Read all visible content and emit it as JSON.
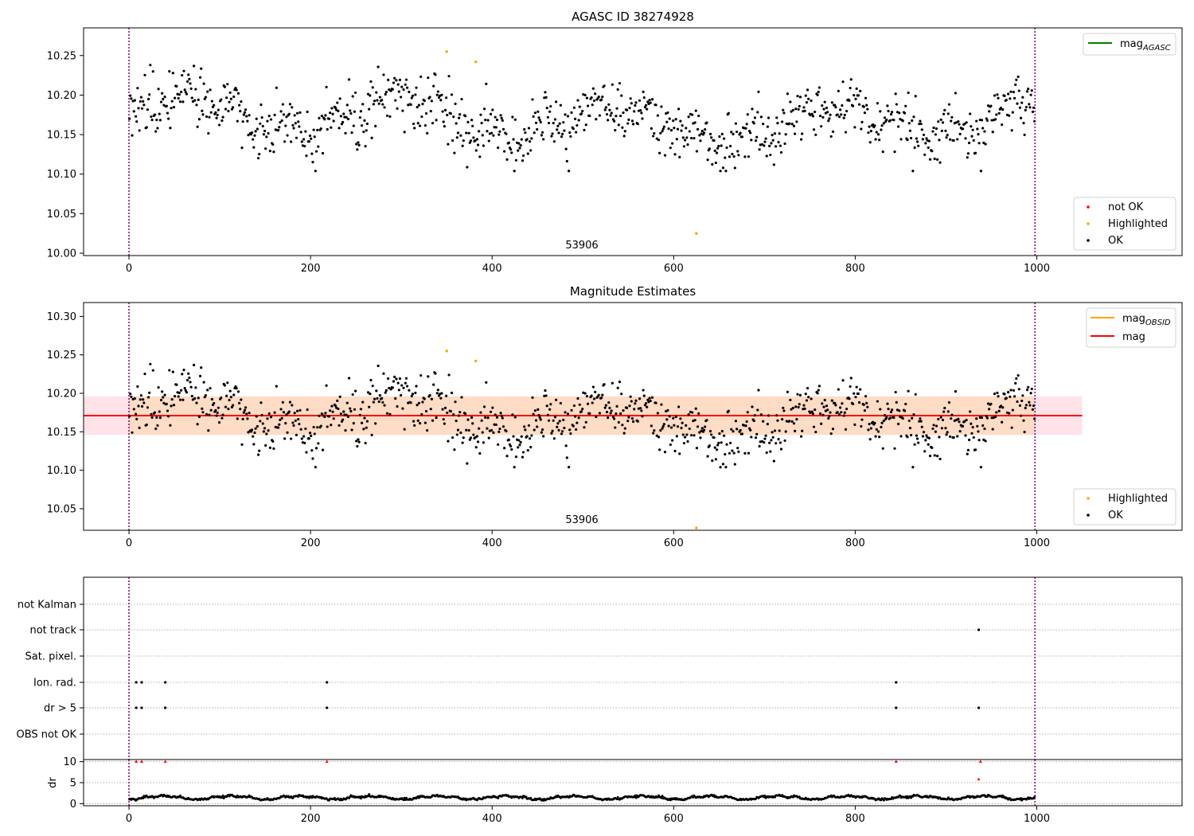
{
  "figure": {
    "panel1_title": "AGASC ID 38274928",
    "panel2_title": "Magnitude Estimates",
    "obsid_label": "53906"
  },
  "colors": {
    "ok": "#000000",
    "highlighted": "#ffa500",
    "not_ok": "#ff0000",
    "vline": "#800080",
    "mag_line": "#ff0000",
    "mag_band": "#ffc0cb",
    "obsid_line": "#ffa500",
    "obsid_band": "#ffdab9",
    "agasc_line": "#008000"
  },
  "legends": {
    "p1_line": {
      "base": "mag",
      "sub": "AGASC"
    },
    "p1_points": [
      "not OK",
      "Highlighted",
      "OK"
    ],
    "p2_lines": [
      {
        "base": "mag",
        "sub": "OBSID"
      },
      {
        "base": "mag",
        "sub": ""
      }
    ],
    "p2_points": [
      "Highlighted",
      "OK"
    ]
  },
  "chart_data": [
    {
      "type": "scatter",
      "title": "AGASC ID 38274928",
      "xlim": [
        -50,
        1160
      ],
      "ylim": [
        9.997,
        10.285
      ],
      "xticks": [
        "0",
        "200",
        "400",
        "600",
        "800",
        "1000"
      ],
      "yticks": [
        "10.00",
        "10.05",
        "10.10",
        "10.15",
        "10.20",
        "10.25"
      ],
      "vlines_x": [
        0,
        998
      ],
      "obsid_text_x": 500,
      "series": [
        {
          "name": "OK",
          "shape": "mean 10.17 ± 0.025, 998 points spanning x 0–998"
        },
        {
          "name": "Highlighted",
          "points": [
            [
              350,
              10.255
            ],
            [
              382,
              10.242
            ],
            [
              625,
              10.025
            ]
          ]
        },
        {
          "name": "not OK",
          "points": []
        }
      ],
      "legend_loc": "upper-right (line), lower-right (points)"
    },
    {
      "type": "scatter",
      "title": "Magnitude Estimates",
      "xlim": [
        -50,
        1160
      ],
      "ylim": [
        10.022,
        10.318
      ],
      "xticks": [
        "0",
        "200",
        "400",
        "600",
        "800",
        "1000"
      ],
      "yticks": [
        "10.05",
        "10.10",
        "10.15",
        "10.20",
        "10.25",
        "10.30"
      ],
      "mag": 10.171,
      "mag_band": [
        10.146,
        10.196
      ],
      "band_x": [
        -50,
        1050
      ],
      "series": [
        {
          "name": "OK",
          "shape": "same observations as above"
        },
        {
          "name": "Highlighted",
          "points": [
            [
              350,
              10.255
            ],
            [
              382,
              10.242
            ],
            [
              625,
              10.025
            ]
          ]
        }
      ],
      "legend_loc": "upper-right (lines), lower-right (points)"
    },
    {
      "type": "scatter",
      "title": "",
      "xlim": [
        -50,
        1160
      ],
      "categories": [
        "not Kalman",
        "not track",
        "Sat. pixel.",
        "Ion. rad.",
        "dr > 5",
        "OBS not OK"
      ],
      "flags": {
        "not track": [
          936
        ],
        "Ion. rad.": [
          8,
          14,
          40,
          218,
          845
        ],
        "dr > 5": [
          8,
          14,
          40,
          218,
          845,
          936
        ]
      }
    },
    {
      "type": "scatter",
      "title": "",
      "ylabel": "dr",
      "xlim": [
        -50,
        1160
      ],
      "ylim": [
        -0.5,
        10.5
      ],
      "yticks": [
        "0",
        "5",
        "10"
      ],
      "xticks": [
        "0",
        "200",
        "400",
        "600",
        "800",
        "1000"
      ],
      "dr_shape": "wavy curve 0.3–2.6 over x 0–998",
      "dr_outliers": [
        [
          8,
          10
        ],
        [
          14,
          10
        ],
        [
          40,
          10
        ],
        [
          218,
          10
        ],
        [
          845,
          10
        ],
        [
          938,
          10
        ],
        [
          936,
          5.8
        ]
      ]
    }
  ]
}
